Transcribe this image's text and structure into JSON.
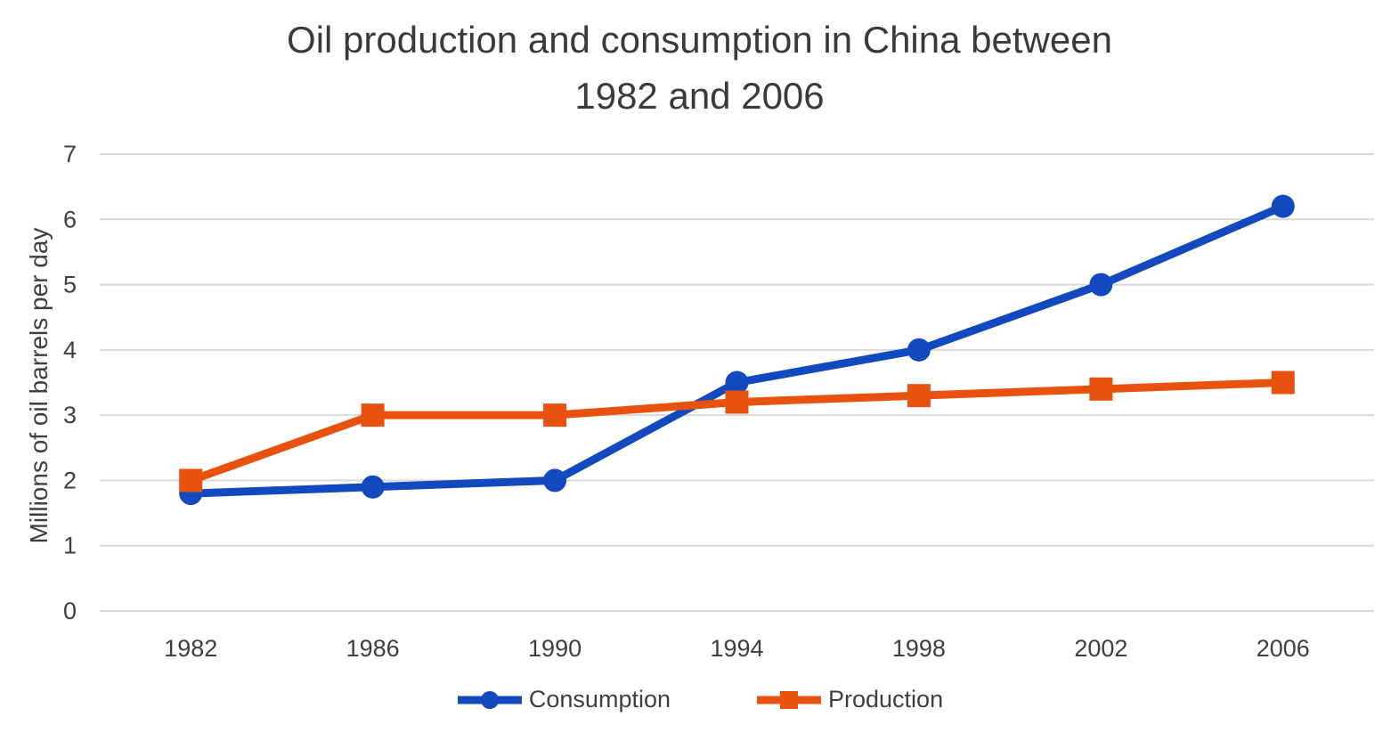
{
  "chart_data": {
    "type": "line",
    "title": "Oil production and consumption in China between 1982 and 2006",
    "title_lines": [
      "Oil production and consumption in China between",
      "1982 and 2006"
    ],
    "xlabel": "",
    "ylabel": "Millions of oil barrels per day",
    "categories": [
      "1982",
      "1986",
      "1990",
      "1994",
      "1998",
      "2002",
      "2006"
    ],
    "series": [
      {
        "name": "Consumption",
        "marker": "circle",
        "color": "#1249BE",
        "values": [
          1.8,
          1.9,
          2.0,
          3.5,
          4.0,
          5.0,
          6.2
        ]
      },
      {
        "name": "Production",
        "marker": "square",
        "color": "#E8520F",
        "values": [
          2.0,
          3.0,
          3.0,
          3.2,
          3.3,
          3.4,
          3.5
        ]
      }
    ],
    "ylim": [
      0,
      7
    ],
    "yticks": [
      0,
      1,
      2,
      3,
      4,
      5,
      6,
      7
    ],
    "grid": true,
    "gridline_color": "#D9D9D9",
    "text_color": "#3f3f3f",
    "legend_position": "bottom"
  }
}
